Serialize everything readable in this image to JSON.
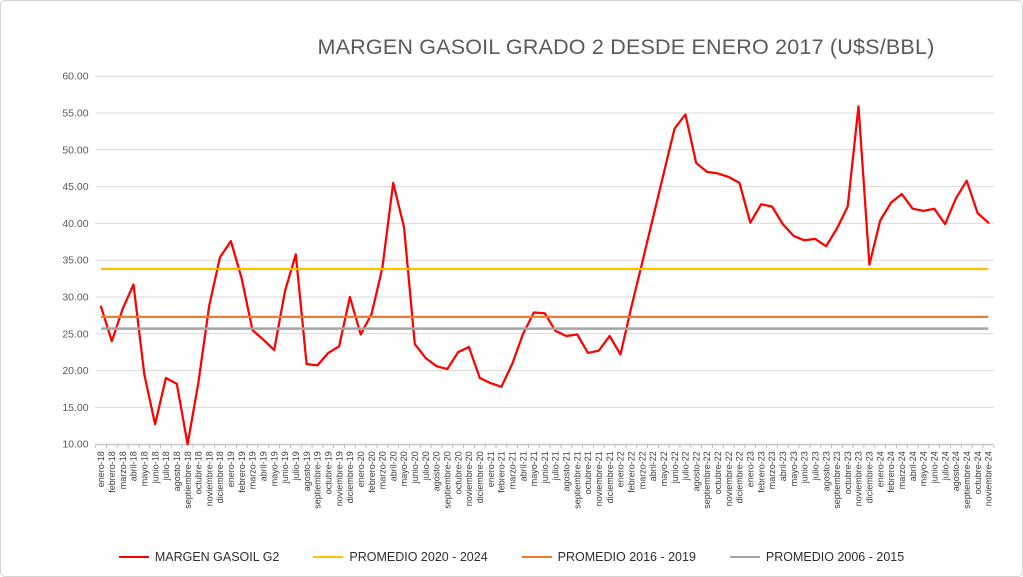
{
  "title": "MARGEN GASOIL GRADO 2 DESDE ENERO 2017 (U$S/BBL)",
  "colors": {
    "series_red": "#FF0000",
    "avg_2020_2024": "#FFC000",
    "avg_2016_2019": "#ED7D31",
    "avg_2006_2015": "#A5A5A5",
    "gridline": "#D9D9D9",
    "axis_line": "#BFBFBF",
    "title_text": "#595959",
    "ytick_text": "#595959",
    "xtick_text": "#3B3B3B"
  },
  "chart_data": {
    "type": "line",
    "title": "MARGEN GASOIL GRADO 2 DESDE ENERO 2017 (U$S/BBL)",
    "xlabel": "",
    "ylabel": "",
    "ylim": [
      10,
      60
    ],
    "ytick_step": 5,
    "ytick_labels": [
      "10.00",
      "15.00",
      "20.00",
      "25.00",
      "30.00",
      "35.00",
      "40.00",
      "45.00",
      "50.00",
      "55.00",
      "60.00"
    ],
    "grid": true,
    "legend_position": "bottom",
    "categories": [
      "enero-18",
      "febrero-18",
      "marzo-18",
      "abril-18",
      "mayo-18",
      "junio-18",
      "julio-18",
      "agosto-18",
      "septiembre-18",
      "octubre-18",
      "noviembre-18",
      "diciembre-18",
      "enero-19",
      "febrero-19",
      "marzo-19",
      "abril-19",
      "mayo-19",
      "junio-19",
      "julio-19",
      "agosto-19",
      "septiembre-19",
      "octubre-19",
      "noviembre-19",
      "diciembre-19",
      "enero-20",
      "febrero-20",
      "marzo-20",
      "abril-20",
      "mayo-20",
      "junio-20",
      "julio-20",
      "agosto-20",
      "septiembre-20",
      "octubre-20",
      "noviembre-20",
      "diciembre-20",
      "enero-21",
      "febrero-21",
      "marzo-21",
      "abril-21",
      "mayo-21",
      "junio-21",
      "julio-21",
      "agosto-21",
      "septiembre-21",
      "octubre-21",
      "noviembre-21",
      "diciembre-21",
      "enero-22",
      "febrero-22",
      "marzo-22",
      "abril-22",
      "mayo-22",
      "junio-22",
      "julio-22",
      "agosto-22",
      "septiembre-22",
      "octubre-22",
      "noviembre-22",
      "diciembre-22",
      "enero-23",
      "febrero-23",
      "marzo-23",
      "abril-23",
      "mayo-23",
      "junio-23",
      "julio-23",
      "agosto-23",
      "septiembre-23",
      "octubre-23",
      "noviembre-23",
      "diciembre-23",
      "enero-24",
      "febrero-24",
      "marzo-24",
      "abril-24",
      "mayo-24",
      "junio-24",
      "julio-24",
      "agosto-24",
      "septiembre-24",
      "octubre-24",
      "noviembre-24"
    ],
    "series": [
      {
        "name": "MARGEN GASOIL G2",
        "color": "#FF0000",
        "stroke_width": 2.25,
        "values": [
          28.7,
          24.0,
          28.4,
          31.7,
          19.5,
          12.7,
          19.0,
          18.2,
          10.0,
          18.4,
          28.8,
          35.4,
          37.6,
          32.5,
          25.5,
          24.2,
          22.8,
          30.8,
          35.8,
          20.9,
          20.7,
          22.4,
          23.3,
          30.0,
          24.9,
          27.7,
          34.0,
          45.5,
          39.5,
          23.6,
          21.7,
          20.6,
          20.2,
          22.5,
          23.2,
          19.0,
          18.3,
          17.8,
          20.9,
          25.0,
          27.9,
          27.8,
          25.4,
          24.7,
          24.9,
          22.4,
          22.7,
          24.7,
          22.2,
          28.6,
          34.6,
          40.7,
          46.8,
          52.9,
          54.8,
          48.2,
          47.0,
          46.8,
          46.3,
          45.5,
          40.1,
          42.6,
          42.3,
          39.9,
          38.3,
          37.7,
          37.9,
          36.9,
          39.3,
          42.3,
          55.9,
          34.4,
          40.4,
          42.8,
          44.0,
          42.0,
          41.7,
          42.0,
          39.9,
          43.4,
          45.8,
          41.4,
          40.1
        ]
      },
      {
        "name": "PROMEDIO 2020 - 2024",
        "color": "#FFC000",
        "stroke_width": 2.25,
        "constant": 33.8
      },
      {
        "name": "PROMEDIO 2016 - 2019",
        "color": "#ED7D31",
        "stroke_width": 2.25,
        "constant": 27.3
      },
      {
        "name": "PROMEDIO 2006 - 2015",
        "color": "#A5A5A5",
        "stroke_width": 2.5,
        "constant": 25.7
      }
    ]
  }
}
